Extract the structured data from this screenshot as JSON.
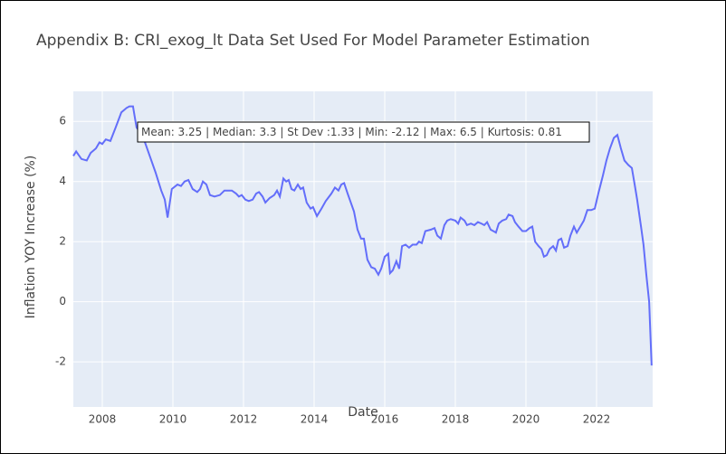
{
  "chart_data": {
    "type": "line",
    "title": "Appendix B: CRI_exog_lt Data Set Used For Model Parameter Estimation",
    "xlabel": "Date",
    "ylabel": "Inflation YOY Increase (%)",
    "annotation": "Mean: 3.25 | Median: 3.3 | St Dev :1.33 | Min: -2.12 | Max: 6.5 | Kurtosis: 0.81",
    "x": [
      2007.18,
      2007.26,
      2007.41,
      2007.56,
      2007.67,
      2007.82,
      2007.92,
      2008.0,
      2008.1,
      2008.23,
      2008.38,
      2008.54,
      2008.69,
      2008.77,
      2008.87,
      2008.97,
      2009.15,
      2009.33,
      2009.51,
      2009.67,
      2009.77,
      2009.85,
      2009.97,
      2010.13,
      2010.23,
      2010.33,
      2010.44,
      2010.56,
      2010.69,
      2010.77,
      2010.85,
      2010.95,
      2011.05,
      2011.18,
      2011.33,
      2011.46,
      2011.67,
      2011.79,
      2011.87,
      2011.95,
      2012.05,
      2012.15,
      2012.26,
      2012.36,
      2012.44,
      2012.54,
      2012.62,
      2012.74,
      2012.87,
      2012.95,
      2013.03,
      2013.13,
      2013.21,
      2013.28,
      2013.36,
      2013.44,
      2013.54,
      2013.62,
      2013.69,
      2013.79,
      2013.9,
      2013.97,
      2014.08,
      2014.21,
      2014.33,
      2014.49,
      2014.59,
      2014.69,
      2014.77,
      2014.85,
      2014.95,
      2015.13,
      2015.23,
      2015.33,
      2015.41,
      2015.51,
      2015.62,
      2015.72,
      2015.82,
      2015.9,
      2016.0,
      2016.1,
      2016.15,
      2016.23,
      2016.33,
      2016.41,
      2016.49,
      2016.59,
      2016.69,
      2016.79,
      2016.9,
      2016.97,
      2017.05,
      2017.15,
      2017.31,
      2017.41,
      2017.49,
      2017.59,
      2017.69,
      2017.77,
      2017.87,
      2018.0,
      2018.08,
      2018.15,
      2018.26,
      2018.33,
      2018.44,
      2018.54,
      2018.64,
      2018.74,
      2018.82,
      2018.9,
      2019.0,
      2019.08,
      2019.15,
      2019.23,
      2019.33,
      2019.44,
      2019.51,
      2019.62,
      2019.69,
      2019.79,
      2019.9,
      2020.0,
      2020.1,
      2020.18,
      2020.26,
      2020.36,
      2020.44,
      2020.51,
      2020.59,
      2020.67,
      2020.77,
      2020.85,
      2020.92,
      2021.0,
      2021.08,
      2021.18,
      2021.26,
      2021.36,
      2021.44,
      2021.54,
      2021.64,
      2021.74,
      2021.85,
      2021.95,
      2022.05,
      2022.18,
      2022.28,
      2022.38,
      2022.49,
      2022.59,
      2022.69,
      2022.79,
      2022.9,
      2023.0,
      2023.08,
      2023.15,
      2023.26,
      2023.33,
      2023.41,
      2023.49,
      2023.56
    ],
    "series": [
      {
        "color": "#636efa",
        "values": [
          4.85,
          5.0,
          4.75,
          4.7,
          4.95,
          5.1,
          5.3,
          5.25,
          5.4,
          5.35,
          5.8,
          6.3,
          6.45,
          6.5,
          6.5,
          5.8,
          5.5,
          4.9,
          4.3,
          3.7,
          3.4,
          2.8,
          3.75,
          3.9,
          3.85,
          4.0,
          4.05,
          3.75,
          3.65,
          3.75,
          4.0,
          3.9,
          3.55,
          3.5,
          3.55,
          3.7,
          3.7,
          3.6,
          3.5,
          3.55,
          3.4,
          3.35,
          3.4,
          3.6,
          3.65,
          3.5,
          3.3,
          3.45,
          3.55,
          3.7,
          3.5,
          4.1,
          4.0,
          4.05,
          3.75,
          3.7,
          3.9,
          3.75,
          3.8,
          3.3,
          3.1,
          3.15,
          2.85,
          3.1,
          3.35,
          3.6,
          3.8,
          3.7,
          3.9,
          3.95,
          3.6,
          3.0,
          2.4,
          2.1,
          2.1,
          1.4,
          1.15,
          1.1,
          0.9,
          1.1,
          1.5,
          1.6,
          0.95,
          1.05,
          1.35,
          1.1,
          1.85,
          1.9,
          1.8,
          1.9,
          1.9,
          2.0,
          1.95,
          2.35,
          2.4,
          2.45,
          2.2,
          2.1,
          2.55,
          2.7,
          2.75,
          2.7,
          2.6,
          2.8,
          2.7,
          2.55,
          2.6,
          2.55,
          2.65,
          2.6,
          2.55,
          2.65,
          2.4,
          2.35,
          2.3,
          2.6,
          2.7,
          2.75,
          2.9,
          2.85,
          2.65,
          2.5,
          2.35,
          2.35,
          2.45,
          2.5,
          2.0,
          1.85,
          1.75,
          1.5,
          1.55,
          1.75,
          1.85,
          1.7,
          2.05,
          2.1,
          1.8,
          1.85,
          2.2,
          2.5,
          2.3,
          2.5,
          2.7,
          3.05,
          3.05,
          3.1,
          3.6,
          4.2,
          4.7,
          5.1,
          5.45,
          5.55,
          5.1,
          4.7,
          4.55,
          4.45,
          3.9,
          3.4,
          2.5,
          1.9,
          0.9,
          0,
          -2.12
        ]
      }
    ],
    "xlim": [
      2007.18,
      2023.59
    ],
    "ylim": [
      -3.5,
      7
    ],
    "xticks": [
      2008,
      2010,
      2012,
      2014,
      2016,
      2018,
      2020,
      2022
    ],
    "yticks": [
      -2,
      0,
      2,
      4,
      6
    ],
    "grid": true
  }
}
